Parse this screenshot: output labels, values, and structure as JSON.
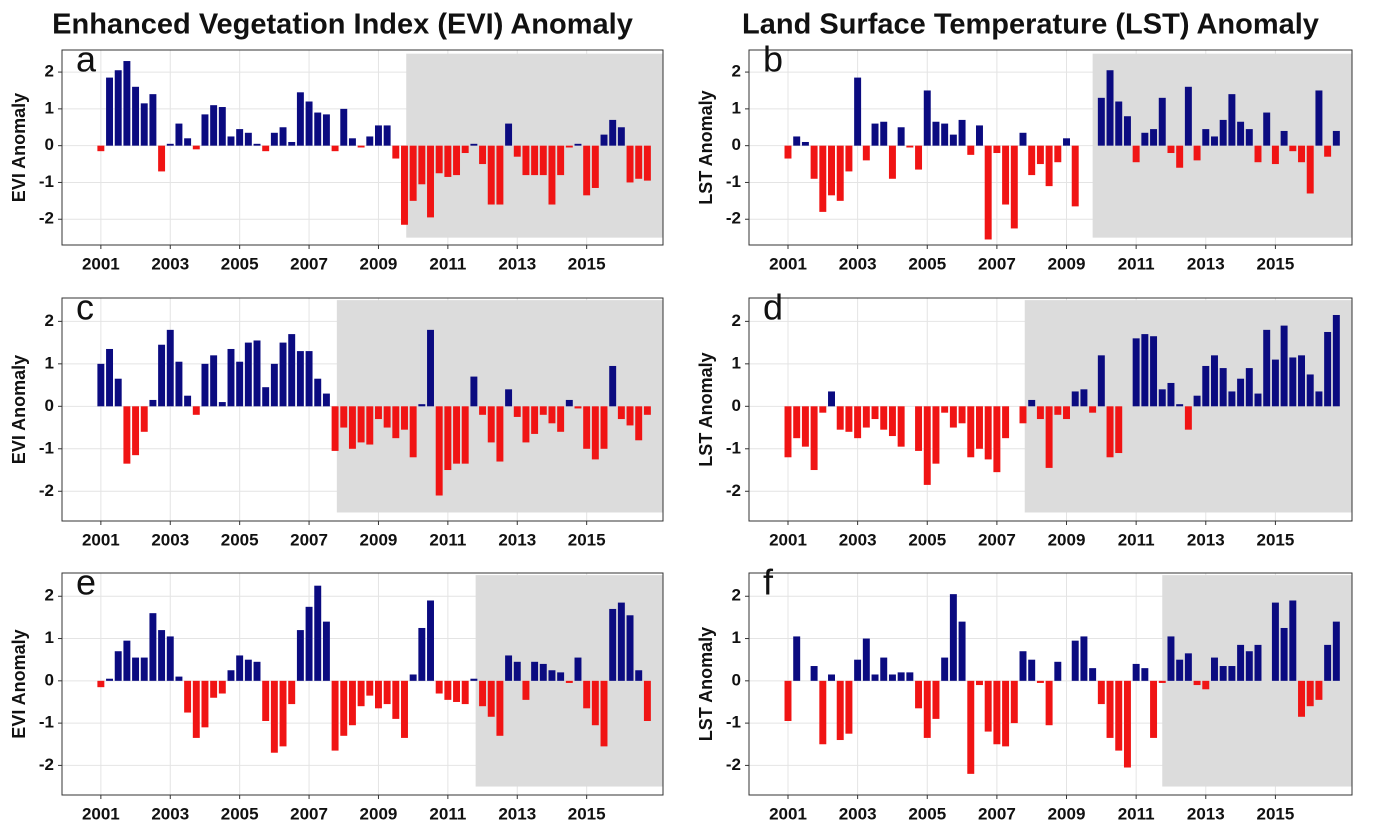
{
  "chart_data": [
    {
      "type": "bar",
      "title": "Enhanced Vegetation Index (EVI) Anomaly",
      "label": "a",
      "ylabel": "EVI Anomaly",
      "x": [
        2001,
        2001.25,
        2001.5,
        2001.75,
        2002,
        2002.25,
        2002.5,
        2002.75,
        2003,
        2003.25,
        2003.5,
        2003.75,
        2004,
        2004.25,
        2004.5,
        2004.75,
        2005,
        2005.25,
        2005.5,
        2005.75,
        2006,
        2006.25,
        2006.5,
        2006.75,
        2007,
        2007.25,
        2007.5,
        2007.75,
        2008,
        2008.25,
        2008.5,
        2008.75,
        2009,
        2009.25,
        2009.5,
        2009.75,
        2010,
        2010.25,
        2010.5,
        2010.75,
        2011,
        2011.25,
        2011.5,
        2011.75,
        2012,
        2012.25,
        2012.5,
        2012.75,
        2013,
        2013.25,
        2013.5,
        2013.75,
        2014,
        2014.25,
        2014.5,
        2014.75,
        2015,
        2015.25,
        2015.5,
        2015.75,
        2016,
        2016.25,
        2016.5,
        2016.75
      ],
      "values": [
        -0.15,
        1.85,
        2.05,
        2.3,
        1.6,
        1.15,
        1.4,
        -0.7,
        0.05,
        0.6,
        0.2,
        -0.1,
        0.85,
        1.1,
        1.05,
        0.25,
        0.45,
        0.35,
        0.05,
        -0.15,
        0.35,
        0.5,
        0.1,
        1.45,
        1.2,
        0.9,
        0.85,
        -0.15,
        1.0,
        0.2,
        -0.05,
        0.25,
        0.55,
        0.55,
        -0.35,
        -2.15,
        -1.5,
        -1.05,
        -1.95,
        -0.75,
        -0.85,
        -0.8,
        -0.2,
        0.05,
        -0.5,
        -1.6,
        -1.6,
        0.6,
        -0.3,
        -0.8,
        -0.8,
        -0.8,
        -1.6,
        -0.8,
        -0.05,
        0.05,
        -1.35,
        -1.15,
        0.3,
        0.7,
        0.5,
        -1.0,
        -0.9,
        -0.95
      ],
      "colors": {
        "positive": "#0b0b80",
        "negative": "#f01414"
      },
      "shaded_region": {
        "x": [
          2009.8,
          2017.2
        ],
        "y": [
          -2.5,
          2.5
        ],
        "color": "#dcdcdc"
      },
      "xlim": [
        1999.88,
        2017.2
      ],
      "xticks": [
        2001,
        2003,
        2005,
        2007,
        2009,
        2011,
        2013,
        2015
      ],
      "ylim": [
        -2.7,
        2.6
      ],
      "yticks": [
        -2,
        -1,
        0,
        1,
        2
      ],
      "grid": true
    },
    {
      "type": "bar",
      "title": "Land Surface Temperature (LST) Anomaly",
      "label": "b",
      "ylabel": "LST Anomaly",
      "x": [
        2001,
        2001.25,
        2001.5,
        2001.75,
        2002,
        2002.25,
        2002.5,
        2002.75,
        2003,
        2003.25,
        2003.5,
        2003.75,
        2004,
        2004.25,
        2004.5,
        2004.75,
        2005,
        2005.25,
        2005.5,
        2005.75,
        2006,
        2006.25,
        2006.5,
        2006.75,
        2007,
        2007.25,
        2007.5,
        2007.75,
        2008,
        2008.25,
        2008.5,
        2008.75,
        2009,
        2009.25,
        2009.5,
        2009.75,
        2010,
        2010.25,
        2010.5,
        2010.75,
        2011,
        2011.25,
        2011.5,
        2011.75,
        2012,
        2012.25,
        2012.5,
        2012.75,
        2013,
        2013.25,
        2013.5,
        2013.75,
        2014,
        2014.25,
        2014.5,
        2014.75,
        2015,
        2015.25,
        2015.5,
        2015.75,
        2016,
        2016.25,
        2016.5,
        2016.75
      ],
      "values": [
        -0.35,
        0.25,
        0.1,
        -0.9,
        -1.8,
        -1.35,
        -1.5,
        -0.7,
        1.85,
        -0.4,
        0.6,
        0.65,
        -0.9,
        0.5,
        -0.05,
        -0.65,
        1.5,
        0.65,
        0.6,
        0.3,
        0.7,
        -0.25,
        0.55,
        -2.55,
        -0.2,
        -1.6,
        -2.25,
        0.35,
        -0.8,
        -0.5,
        -1.1,
        -0.45,
        0.2,
        -1.65,
        0,
        0,
        1.3,
        2.05,
        1.2,
        0.8,
        -0.45,
        0.35,
        0.45,
        1.3,
        -0.2,
        -0.6,
        1.6,
        -0.4,
        0.45,
        0.25,
        0.7,
        1.4,
        0.65,
        0.45,
        -0.45,
        0.9,
        -0.5,
        0.4,
        -0.15,
        -0.45,
        -1.3,
        1.5,
        -0.3,
        0.4
      ],
      "colors": {
        "positive": "#0b0b80",
        "negative": "#f01414"
      },
      "shaded_region": {
        "x": [
          2009.75,
          2017.2
        ],
        "y": [
          -2.5,
          2.5
        ],
        "color": "#dcdcdc"
      },
      "xlim": [
        1999.88,
        2017.2
      ],
      "xticks": [
        2001,
        2003,
        2005,
        2007,
        2009,
        2011,
        2013,
        2015
      ],
      "ylim": [
        -2.7,
        2.6
      ],
      "yticks": [
        -2,
        -1,
        0,
        1,
        2
      ],
      "grid": true
    },
    {
      "type": "bar",
      "label": "c",
      "ylabel": "EVI Anomaly",
      "x": [
        2001,
        2001.25,
        2001.5,
        2001.75,
        2002,
        2002.25,
        2002.5,
        2002.75,
        2003,
        2003.25,
        2003.5,
        2003.75,
        2004,
        2004.25,
        2004.5,
        2004.75,
        2005,
        2005.25,
        2005.5,
        2005.75,
        2006,
        2006.25,
        2006.5,
        2006.75,
        2007,
        2007.25,
        2007.5,
        2007.75,
        2008,
        2008.25,
        2008.5,
        2008.75,
        2009,
        2009.25,
        2009.5,
        2009.75,
        2010,
        2010.25,
        2010.5,
        2010.75,
        2011,
        2011.25,
        2011.5,
        2011.75,
        2012,
        2012.25,
        2012.5,
        2012.75,
        2013,
        2013.25,
        2013.5,
        2013.75,
        2014,
        2014.25,
        2014.5,
        2014.75,
        2015,
        2015.25,
        2015.5,
        2015.75,
        2016,
        2016.25,
        2016.5,
        2016.75
      ],
      "values": [
        1.0,
        1.35,
        0.65,
        -1.35,
        -1.15,
        -0.6,
        0.15,
        1.45,
        1.8,
        1.05,
        0.25,
        -0.2,
        1.0,
        1.2,
        0.1,
        1.35,
        1.05,
        1.5,
        1.55,
        0.45,
        1.0,
        1.5,
        1.7,
        1.3,
        1.3,
        0.65,
        0.3,
        -1.05,
        -0.5,
        -1.0,
        -0.85,
        -0.9,
        -0.3,
        -0.5,
        -0.75,
        -0.55,
        -1.2,
        0.05,
        1.8,
        -2.1,
        -1.5,
        -1.35,
        -1.35,
        0.7,
        -0.2,
        -0.85,
        -1.3,
        0.4,
        -0.25,
        -0.85,
        -0.65,
        -0.2,
        -0.4,
        -0.6,
        0.15,
        -0.05,
        -1.0,
        -1.25,
        -1.0,
        0.95,
        -0.3,
        -0.45,
        -0.8,
        -0.2
      ],
      "colors": {
        "positive": "#0b0b80",
        "negative": "#f01414"
      },
      "shaded_region": {
        "x": [
          2007.8,
          2017.2
        ],
        "y": [
          -2.5,
          2.5
        ],
        "color": "#dcdcdc"
      },
      "xlim": [
        1999.88,
        2017.2
      ],
      "xticks": [
        2001,
        2003,
        2005,
        2007,
        2009,
        2011,
        2013,
        2015
      ],
      "ylim": [
        -2.7,
        2.55
      ],
      "yticks": [
        -2,
        -1,
        0,
        1,
        2
      ],
      "grid": true
    },
    {
      "type": "bar",
      "label": "d",
      "ylabel": "LST Anomaly",
      "x": [
        2001,
        2001.25,
        2001.5,
        2001.75,
        2002,
        2002.25,
        2002.5,
        2002.75,
        2003,
        2003.25,
        2003.5,
        2003.75,
        2004,
        2004.25,
        2004.5,
        2004.75,
        2005,
        2005.25,
        2005.5,
        2005.75,
        2006,
        2006.25,
        2006.5,
        2006.75,
        2007,
        2007.25,
        2007.5,
        2007.75,
        2008,
        2008.25,
        2008.5,
        2008.75,
        2009,
        2009.25,
        2009.5,
        2009.75,
        2010,
        2010.25,
        2010.5,
        2010.75,
        2011,
        2011.25,
        2011.5,
        2011.75,
        2012,
        2012.25,
        2012.5,
        2012.75,
        2013,
        2013.25,
        2013.5,
        2013.75,
        2014,
        2014.25,
        2014.5,
        2014.75,
        2015,
        2015.25,
        2015.5,
        2015.75,
        2016,
        2016.25,
        2016.5,
        2016.75
      ],
      "values": [
        -1.2,
        -0.75,
        -0.95,
        -1.5,
        -0.15,
        0.35,
        -0.55,
        -0.6,
        -0.75,
        -0.5,
        -0.3,
        -0.55,
        -0.7,
        -0.95,
        0,
        -1.05,
        -1.85,
        -1.35,
        -0.15,
        -0.5,
        -0.4,
        -1.2,
        -1.0,
        -1.25,
        -1.55,
        -0.75,
        0,
        -0.4,
        0.15,
        -0.3,
        -1.45,
        -0.2,
        -0.3,
        0.35,
        0.4,
        -0.15,
        1.2,
        -1.2,
        -1.1,
        0,
        1.6,
        1.7,
        1.65,
        0.4,
        0.55,
        0.05,
        -0.55,
        0.25,
        0.95,
        1.2,
        0.9,
        0.35,
        0.65,
        0.9,
        0.3,
        1.8,
        1.1,
        1.9,
        1.15,
        1.2,
        0.75,
        0.35,
        1.75,
        2.15
      ],
      "colors": {
        "positive": "#0b0b80",
        "negative": "#f01414"
      },
      "shaded_region": {
        "x": [
          2007.8,
          2017.2
        ],
        "y": [
          -2.5,
          2.5
        ],
        "color": "#dcdcdc"
      },
      "xlim": [
        1999.88,
        2017.2
      ],
      "xticks": [
        2001,
        2003,
        2005,
        2007,
        2009,
        2011,
        2013,
        2015
      ],
      "ylim": [
        -2.7,
        2.55
      ],
      "yticks": [
        -2,
        -1,
        0,
        1,
        2
      ],
      "grid": true
    },
    {
      "type": "bar",
      "label": "e",
      "ylabel": "EVI Anomaly",
      "x": [
        2001,
        2001.25,
        2001.5,
        2001.75,
        2002,
        2002.25,
        2002.5,
        2002.75,
        2003,
        2003.25,
        2003.5,
        2003.75,
        2004,
        2004.25,
        2004.5,
        2004.75,
        2005,
        2005.25,
        2005.5,
        2005.75,
        2006,
        2006.25,
        2006.5,
        2006.75,
        2007,
        2007.25,
        2007.5,
        2007.75,
        2008,
        2008.25,
        2008.5,
        2008.75,
        2009,
        2009.25,
        2009.5,
        2009.75,
        2010,
        2010.25,
        2010.5,
        2010.75,
        2011,
        2011.25,
        2011.5,
        2011.75,
        2012,
        2012.25,
        2012.5,
        2012.75,
        2013,
        2013.25,
        2013.5,
        2013.75,
        2014,
        2014.25,
        2014.5,
        2014.75,
        2015,
        2015.25,
        2015.5,
        2015.75,
        2016,
        2016.25,
        2016.5,
        2016.75
      ],
      "values": [
        -0.15,
        0.05,
        0.7,
        0.95,
        0.55,
        0.55,
        1.6,
        1.2,
        1.05,
        0.1,
        -0.75,
        -1.35,
        -1.1,
        -0.4,
        -0.3,
        0.25,
        0.6,
        0.5,
        0.45,
        -0.95,
        -1.7,
        -1.55,
        -0.55,
        1.2,
        1.75,
        2.25,
        1.4,
        -1.65,
        -1.3,
        -1.05,
        -0.6,
        -0.35,
        -0.65,
        -0.55,
        -0.9,
        -1.35,
        0.15,
        1.25,
        1.9,
        -0.3,
        -0.45,
        -0.5,
        -0.55,
        0.05,
        -0.6,
        -0.85,
        -1.3,
        0.6,
        0.45,
        -0.45,
        0.45,
        0.4,
        0.25,
        0.2,
        -0.05,
        0.55,
        -0.65,
        -1.05,
        -1.55,
        1.7,
        1.85,
        1.55,
        0.25,
        -0.95
      ],
      "colors": {
        "positive": "#0b0b80",
        "negative": "#f01414"
      },
      "shaded_region": {
        "x": [
          2011.8,
          2017.2
        ],
        "y": [
          -2.5,
          2.5
        ],
        "color": "#dcdcdc"
      },
      "xlim": [
        1999.88,
        2017.2
      ],
      "xticks": [
        2001,
        2003,
        2005,
        2007,
        2009,
        2011,
        2013,
        2015
      ],
      "ylim": [
        -2.7,
        2.55
      ],
      "yticks": [
        -2,
        -1,
        0,
        1,
        2
      ],
      "grid": true
    },
    {
      "type": "bar",
      "label": "f",
      "ylabel": "LST Anomaly",
      "x": [
        2001,
        2001.25,
        2001.5,
        2001.75,
        2002,
        2002.25,
        2002.5,
        2002.75,
        2003,
        2003.25,
        2003.5,
        2003.75,
        2004,
        2004.25,
        2004.5,
        2004.75,
        2005,
        2005.25,
        2005.5,
        2005.75,
        2006,
        2006.25,
        2006.5,
        2006.75,
        2007,
        2007.25,
        2007.5,
        2007.75,
        2008,
        2008.25,
        2008.5,
        2008.75,
        2009,
        2009.25,
        2009.5,
        2009.75,
        2010,
        2010.25,
        2010.5,
        2010.75,
        2011,
        2011.25,
        2011.5,
        2011.75,
        2012,
        2012.25,
        2012.5,
        2012.75,
        2013,
        2013.25,
        2013.5,
        2013.75,
        2014,
        2014.25,
        2014.5,
        2014.75,
        2015,
        2015.25,
        2015.5,
        2015.75,
        2016,
        2016.25,
        2016.5,
        2016.75
      ],
      "values": [
        -0.95,
        1.05,
        0,
        0.35,
        -1.5,
        0.15,
        -1.4,
        -1.25,
        0.5,
        1.0,
        0.15,
        0.55,
        0.15,
        0.2,
        0.2,
        -0.65,
        -1.35,
        -0.9,
        0.55,
        2.05,
        1.4,
        -2.2,
        -0.1,
        -1.2,
        -1.5,
        -1.55,
        -1.0,
        0.7,
        0.5,
        -0.05,
        -1.05,
        0.45,
        0,
        0.95,
        1.05,
        0.3,
        -0.55,
        -1.35,
        -1.65,
        -2.05,
        0.4,
        0.3,
        -1.35,
        -0.05,
        1.05,
        0.5,
        0.65,
        -0.1,
        -0.2,
        0.55,
        0.35,
        0.35,
        0.85,
        0.7,
        0.85,
        0,
        1.85,
        1.25,
        1.9,
        -0.85,
        -0.6,
        -0.45,
        0.85,
        1.4
      ],
      "colors": {
        "positive": "#0b0b80",
        "negative": "#f01414"
      },
      "shaded_region": {
        "x": [
          2011.75,
          2017.2
        ],
        "y": [
          -2.5,
          2.5
        ],
        "color": "#dcdcdc"
      },
      "xlim": [
        1999.88,
        2017.2
      ],
      "xticks": [
        2001,
        2003,
        2005,
        2007,
        2009,
        2011,
        2013,
        2015
      ],
      "ylim": [
        -2.7,
        2.55
      ],
      "yticks": [
        -2,
        -1,
        0,
        1,
        2
      ],
      "grid": true
    }
  ]
}
